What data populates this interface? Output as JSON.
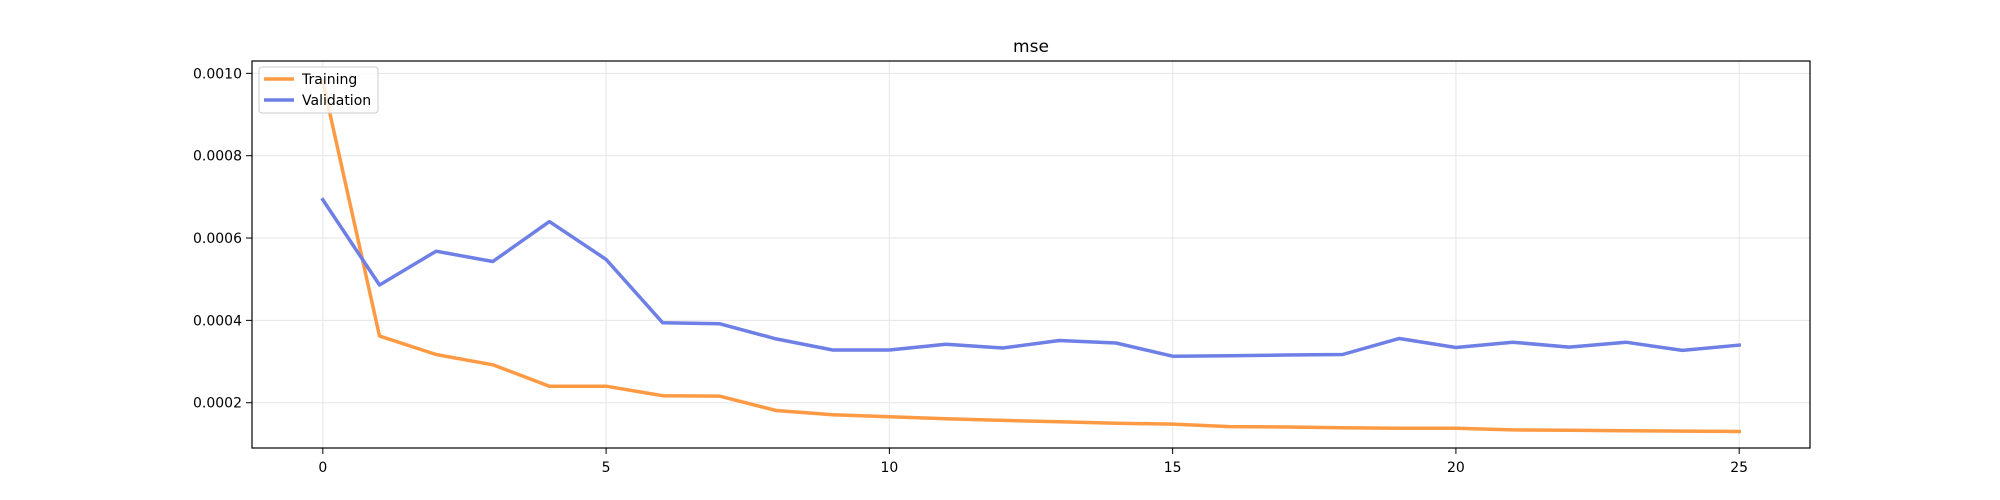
{
  "chart_data": {
    "type": "line",
    "title": "mse",
    "xlabel": "",
    "ylabel": "",
    "xlim": [
      -1.25,
      26.25
    ],
    "ylim": [
      9e-05,
      0.00103
    ],
    "x_ticks": [
      0,
      5,
      10,
      15,
      20,
      25
    ],
    "x_tick_labels": [
      "0",
      "5",
      "10",
      "15",
      "20",
      "25"
    ],
    "y_ticks": [
      0.0002,
      0.0004,
      0.0006,
      0.0008,
      0.001
    ],
    "y_tick_labels": [
      "0.0002",
      "0.0004",
      "0.0006",
      "0.0008",
      "0.0010"
    ],
    "grid": true,
    "legend_position": "top-left",
    "x": [
      0,
      1,
      2,
      3,
      4,
      5,
      6,
      7,
      8,
      9,
      10,
      11,
      12,
      13,
      14,
      15,
      16,
      17,
      18,
      19,
      20,
      21,
      22,
      23,
      24,
      25
    ],
    "series": [
      {
        "name": "Training",
        "color": "#ff9a44",
        "values": [
          0.00098,
          0.000362,
          0.000317,
          0.000292,
          0.00024,
          0.00024,
          0.000217,
          0.000216,
          0.000181,
          0.000171,
          0.000166,
          0.000161,
          0.000157,
          0.000154,
          0.00015,
          0.000148,
          0.000142,
          0.000141,
          0.000139,
          0.000138,
          0.000138,
          0.000134,
          0.000133,
          0.000132,
          0.000131,
          0.00013
        ]
      },
      {
        "name": "Validation",
        "color": "#6e7fe6",
        "values": [
          0.000693,
          0.000486,
          0.000568,
          0.000543,
          0.00064,
          0.000548,
          0.000394,
          0.000392,
          0.000355,
          0.000328,
          0.000328,
          0.000342,
          0.000333,
          0.000351,
          0.000345,
          0.000313,
          0.000314,
          0.000316,
          0.000317,
          0.000356,
          0.000334,
          0.000347,
          0.000335,
          0.000347,
          0.000327,
          0.00034
        ]
      }
    ]
  }
}
